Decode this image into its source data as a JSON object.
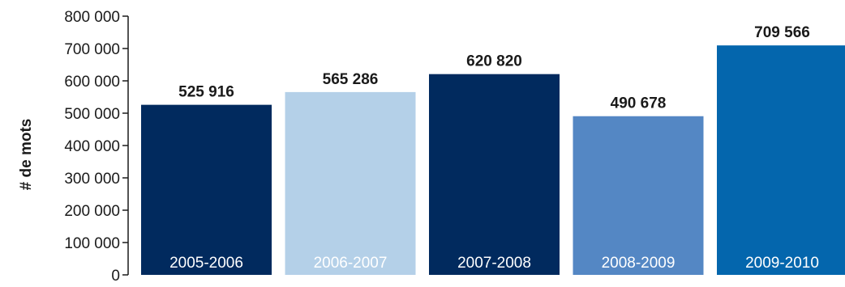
{
  "chart_data": {
    "type": "bar",
    "ylabel": "# de mots",
    "categories": [
      "2005-2006",
      "2006-2007",
      "2007-2008",
      "2008-2009",
      "2009-2010"
    ],
    "values": [
      525916,
      565286,
      620820,
      490678,
      709566
    ],
    "value_labels": [
      "525 916",
      "565 286",
      "620 820",
      "490 678",
      "709 566"
    ],
    "bar_colors": [
      "#012a5e",
      "#b4d0e8",
      "#012a5e",
      "#5487c4",
      "#0466ad"
    ],
    "category_label_colors": [
      "#ffffff",
      "#ffffff",
      "#ffffff",
      "#ffffff",
      "#ffffff"
    ],
    "ylim": [
      0,
      800000
    ],
    "yticks": [
      0,
      100000,
      200000,
      300000,
      400000,
      500000,
      600000,
      700000,
      800000
    ],
    "ytick_labels": [
      "0",
      "100 000",
      "200 000",
      "300 000",
      "400 000",
      "500 000",
      "600 000",
      "700 000",
      "800 000"
    ],
    "grid": false,
    "legend": "none"
  }
}
